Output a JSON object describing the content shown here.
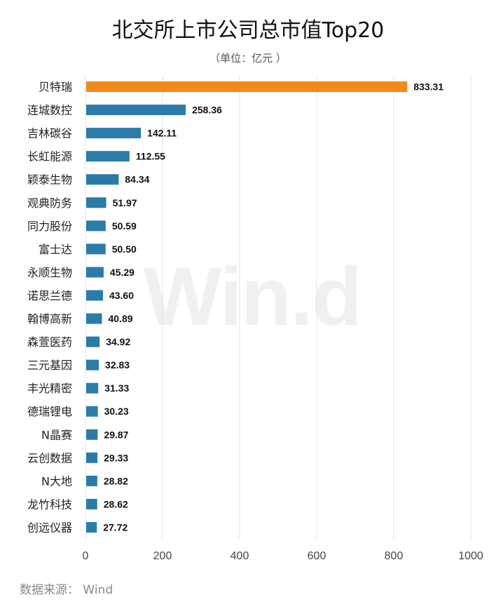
{
  "title": "北交所上市公司总市值Top20",
  "subtitle": "（单位：亿元 ）",
  "watermark": "Win.d",
  "source": "数据来源： Wind",
  "chart_data": {
    "type": "bar",
    "orientation": "horizontal",
    "title": "北交所上市公司总市值Top20",
    "unit": "亿元",
    "categories": [
      "贝特瑞",
      "连城数控",
      "吉林碳谷",
      "长虹能源",
      "颖泰生物",
      "观典防务",
      "同力股份",
      "富士达",
      "永顺生物",
      "诺思兰德",
      "翰博高新",
      "森萱医药",
      "三元基因",
      "丰光精密",
      "德瑞锂电",
      "N晶赛",
      "云创数据",
      "N大地",
      "龙竹科技",
      "创远仪器"
    ],
    "values": [
      833.31,
      258.36,
      142.11,
      112.55,
      84.34,
      51.97,
      50.59,
      50.5,
      45.29,
      43.6,
      40.89,
      34.92,
      32.83,
      31.33,
      30.23,
      29.87,
      29.33,
      28.82,
      28.62,
      27.72
    ],
    "value_labels": [
      "833.31",
      "258.36",
      "142.11",
      "112.55",
      "84.34",
      "51.97",
      "50.59",
      "50.50",
      "45.29",
      "43.60",
      "40.89",
      "34.92",
      "32.83",
      "31.33",
      "30.23",
      "29.87",
      "29.33",
      "28.82",
      "28.62",
      "27.72"
    ],
    "xlim": [
      0,
      1000
    ],
    "xticks": [
      0,
      200,
      400,
      600,
      800,
      1000
    ],
    "xtick_labels": [
      "0",
      "200",
      "400",
      "600",
      "800",
      "1000"
    ],
    "grid": "vertical",
    "highlight_index": 0,
    "colors": {
      "highlight": "#F28A1C",
      "bar": "#2B7BA8",
      "grid": "#e3e3e3"
    }
  }
}
